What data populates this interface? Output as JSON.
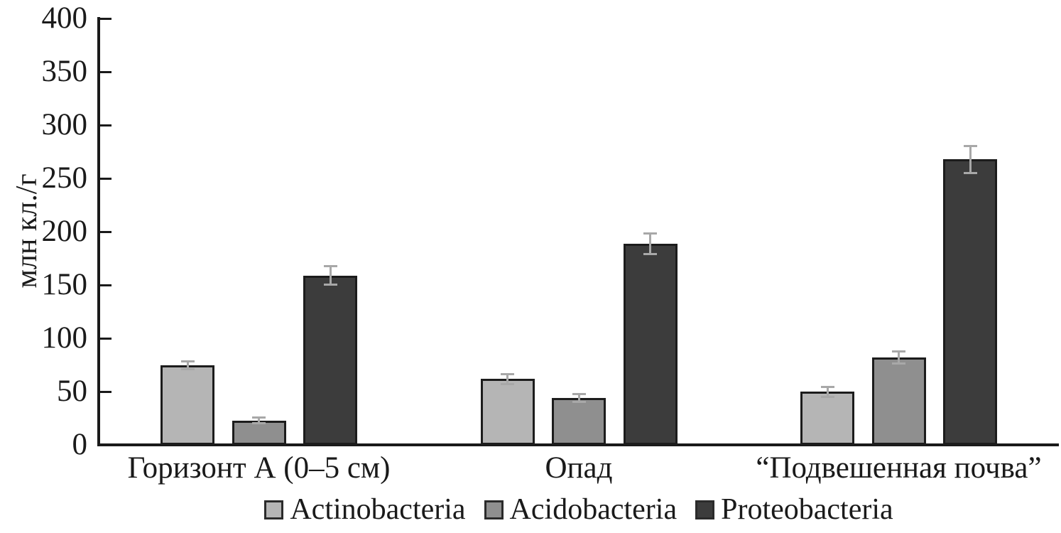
{
  "figure": {
    "background": "#ffffff",
    "text_color": "#1a1a1a"
  },
  "chart_data": {
    "type": "bar",
    "title": "",
    "xlabel": "",
    "ylabel": "млн кл./г",
    "ylim": [
      0,
      400
    ],
    "yticks": [
      0,
      50,
      100,
      150,
      200,
      250,
      300,
      350,
      400
    ],
    "grid": false,
    "legend_position": "bottom",
    "error_bars": true,
    "categories": [
      "Горизонт А (0–5 см)",
      "Опад",
      "“Подвешенная почва”"
    ],
    "series": [
      {
        "name": "Actinobacteria",
        "color": "#b5b5b5",
        "values": [
          75,
          62,
          50
        ],
        "errors": [
          4,
          5,
          5
        ]
      },
      {
        "name": "Acidobacteria",
        "color": "#8f8f8f",
        "values": [
          23,
          44,
          82
        ],
        "errors": [
          3,
          4,
          6
        ]
      },
      {
        "name": "Proteobacteria",
        "color": "#3c3c3c",
        "values": [
          159,
          189,
          268
        ],
        "errors": [
          9,
          10,
          13
        ]
      }
    ],
    "colors": {
      "axis": "#1a1a1a",
      "bar_border": "#1c1c1c",
      "error_bar": "#a8a8a8"
    }
  }
}
